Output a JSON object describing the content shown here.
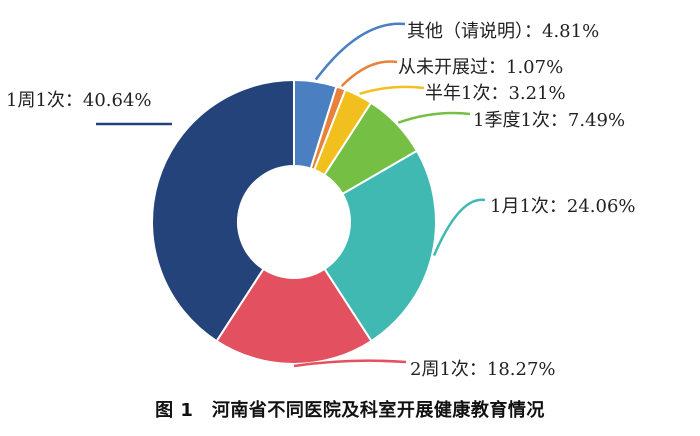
{
  "chart_data": {
    "type": "pie",
    "style": "donut",
    "categories": [
      "其他（请说明）",
      "从未开展过",
      "半年1次",
      "1季度1次",
      "1月1次",
      "2周1次",
      "1周1次"
    ],
    "values": [
      4.81,
      1.07,
      3.21,
      7.49,
      24.06,
      18.27,
      40.64
    ],
    "labels": [
      "其他（请说明）：4.81%",
      "从未开展过：1.07%",
      "半年1次：3.21%",
      "1季度1次：7.49%",
      "1月1次：24.06%",
      "2周1次：18.27%",
      "1周1次：40.64%"
    ],
    "colors": [
      "#4a7fc1",
      "#e8823a",
      "#f2c01e",
      "#74bf44",
      "#3fb9b1",
      "#e3505f",
      "#24437a"
    ],
    "title": "图 1　河南省不同医院及科室开展健康教育情况"
  }
}
